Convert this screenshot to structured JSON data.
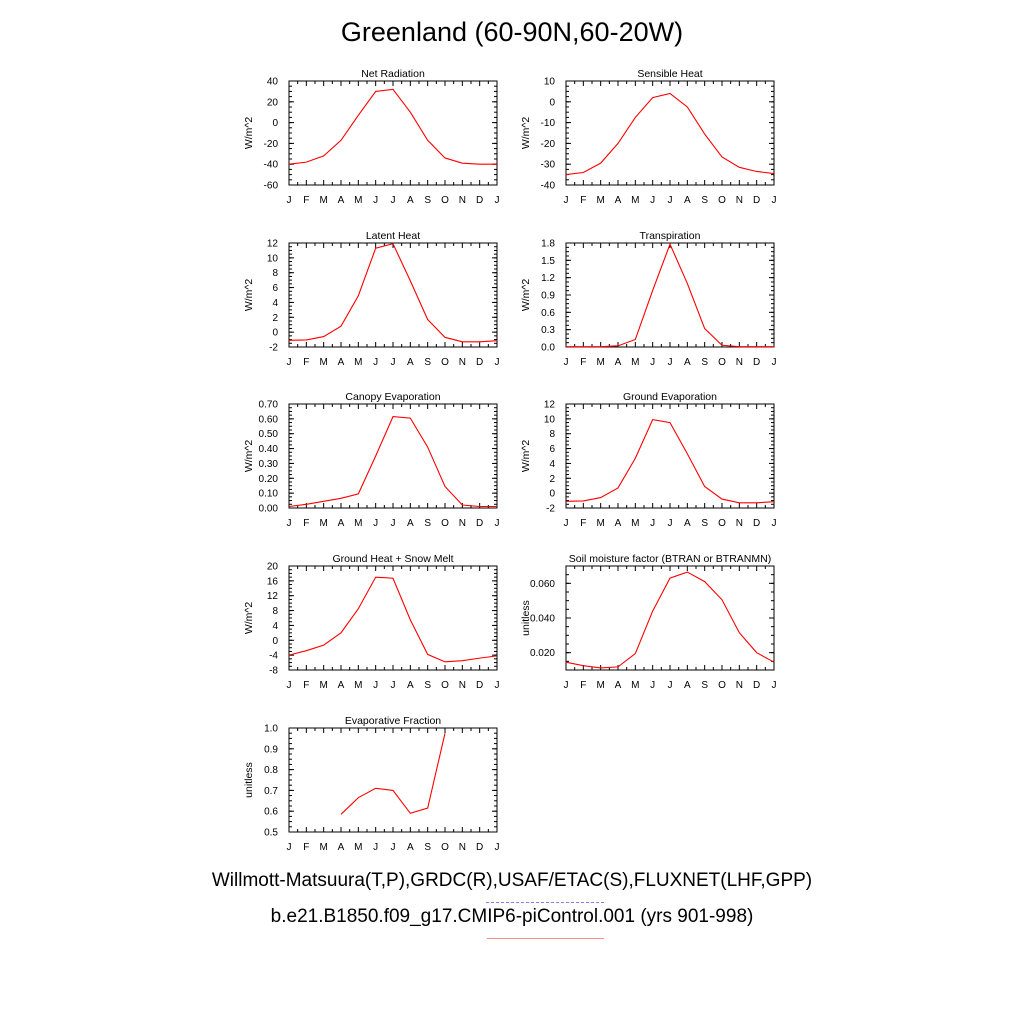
{
  "title": "Greenland (60-90N,60-20W)",
  "legend": {
    "obs": "Willmott-Matsuura(T,P),GRDC(R),USAF/ETAC(S),FLUXNET(LHF,GPP)",
    "obs_color": "#8080e6",
    "model": "b.e21.B1850.f09_g17.CMIP6-piControl.001 (yrs 901-998)",
    "model_color": "#ff0000"
  },
  "chart_data": [
    {
      "type": "line",
      "title": "Net Radiation",
      "ylabel": "W/m^2",
      "categories": [
        "J",
        "F",
        "M",
        "A",
        "M",
        "J",
        "J",
        "A",
        "S",
        "O",
        "N",
        "D",
        "J"
      ],
      "ylim": [
        -60,
        40
      ],
      "yticks": [
        -60,
        -40,
        -20,
        0,
        20,
        40
      ],
      "ytick_labels": [
        "-60",
        "-40",
        "-20",
        "0",
        "20",
        "40"
      ],
      "series": [
        {
          "values": [
            -40,
            -38,
            -32,
            -17,
            7,
            30,
            32,
            10,
            -17,
            -34,
            -39,
            -40,
            -40
          ],
          "color": "#ff0000"
        }
      ]
    },
    {
      "type": "line",
      "title": "Sensible Heat",
      "ylabel": "W/m^2",
      "categories": [
        "J",
        "F",
        "M",
        "A",
        "M",
        "J",
        "J",
        "A",
        "S",
        "O",
        "N",
        "D",
        "J"
      ],
      "ylim": [
        -40,
        10
      ],
      "yticks": [
        -40,
        -30,
        -20,
        -10,
        0,
        10
      ],
      "ytick_labels": [
        "-40",
        "-30",
        "-20",
        "-10",
        "0",
        "10"
      ],
      "series": [
        {
          "values": [
            -35,
            -34,
            -29.5,
            -20,
            -7.5,
            2,
            4,
            -2.5,
            -15.5,
            -26.5,
            -31.5,
            -33.5,
            -34.5
          ],
          "color": "#ff0000"
        }
      ]
    },
    {
      "type": "line",
      "title": "Latent Heat",
      "ylabel": "W/m^2",
      "categories": [
        "J",
        "F",
        "M",
        "A",
        "M",
        "J",
        "J",
        "A",
        "S",
        "O",
        "N",
        "D",
        "J"
      ],
      "ylim": [
        -2,
        12
      ],
      "yticks": [
        -2,
        0,
        2,
        4,
        6,
        8,
        10,
        12
      ],
      "ytick_labels": [
        "-2",
        "0",
        "2",
        "4",
        "6",
        "8",
        "10",
        "12"
      ],
      "series": [
        {
          "values": [
            -1.1,
            -1.05,
            -0.6,
            0.8,
            4.9,
            11.3,
            11.9,
            6.9,
            1.7,
            -0.7,
            -1.3,
            -1.3,
            -1.15
          ],
          "color": "#ff0000"
        }
      ]
    },
    {
      "type": "line",
      "title": "Transpiration",
      "ylabel": "W/m^2",
      "categories": [
        "J",
        "F",
        "M",
        "A",
        "M",
        "J",
        "J",
        "A",
        "S",
        "O",
        "N",
        "D",
        "J"
      ],
      "ylim": [
        0,
        1.8
      ],
      "yticks": [
        0,
        0.3,
        0.6,
        0.9,
        1.2,
        1.5,
        1.8
      ],
      "ytick_labels": [
        "0.0",
        "0.3",
        "0.6",
        "0.9",
        "1.2",
        "1.5",
        "1.8"
      ],
      "series": [
        {
          "values": [
            0.005,
            0.005,
            0.005,
            0.02,
            0.13,
            0.98,
            1.78,
            1.1,
            0.32,
            0.03,
            0.005,
            0.005,
            0.005
          ],
          "color": "#ff0000"
        }
      ]
    },
    {
      "type": "line",
      "title": "Canopy Evaporation",
      "ylabel": "W/m^2",
      "categories": [
        "J",
        "F",
        "M",
        "A",
        "M",
        "J",
        "J",
        "A",
        "S",
        "O",
        "N",
        "D",
        "J"
      ],
      "ylim": [
        0,
        0.7
      ],
      "yticks": [
        0,
        0.1,
        0.2,
        0.3,
        0.4,
        0.5,
        0.6,
        0.7
      ],
      "ytick_labels": [
        "0.00",
        "0.10",
        "0.20",
        "0.30",
        "0.40",
        "0.50",
        "0.60",
        "0.70"
      ],
      "series": [
        {
          "values": [
            0.01,
            0.025,
            0.045,
            0.065,
            0.095,
            0.35,
            0.615,
            0.605,
            0.41,
            0.145,
            0.02,
            0.01,
            0.01
          ],
          "color": "#ff0000"
        }
      ]
    },
    {
      "type": "line",
      "title": "Ground Evaporation",
      "ylabel": "W/m^2",
      "categories": [
        "J",
        "F",
        "M",
        "A",
        "M",
        "J",
        "J",
        "A",
        "S",
        "O",
        "N",
        "D",
        "J"
      ],
      "ylim": [
        -2,
        12
      ],
      "yticks": [
        -2,
        0,
        2,
        4,
        6,
        8,
        10,
        12
      ],
      "ytick_labels": [
        "-2",
        "0",
        "2",
        "4",
        "6",
        "8",
        "10",
        "12"
      ],
      "series": [
        {
          "values": [
            -1.1,
            -1.05,
            -0.6,
            0.7,
            4.7,
            9.9,
            9.5,
            5.3,
            0.9,
            -0.8,
            -1.3,
            -1.3,
            -1.15
          ],
          "color": "#ff0000"
        }
      ]
    },
    {
      "type": "line",
      "title": "Ground Heat + Snow Melt",
      "ylabel": "W/m^2",
      "categories": [
        "J",
        "F",
        "M",
        "A",
        "M",
        "J",
        "J",
        "A",
        "S",
        "O",
        "N",
        "D",
        "J"
      ],
      "ylim": [
        -8,
        20
      ],
      "yticks": [
        -8,
        -4,
        0,
        4,
        8,
        12,
        16,
        20
      ],
      "ytick_labels": [
        "-8",
        "-4",
        "0",
        "4",
        "8",
        "12",
        "16",
        "20"
      ],
      "series": [
        {
          "values": [
            -4,
            -2.8,
            -1.3,
            2,
            8.5,
            17,
            16.7,
            5.5,
            -3.8,
            -5.8,
            -5.5,
            -4.8,
            -4.2
          ],
          "color": "#ff0000"
        }
      ]
    },
    {
      "type": "line",
      "title": "Soil moisture factor (BTRAN or BTRANMN)",
      "ylabel": "unitless",
      "categories": [
        "J",
        "F",
        "M",
        "A",
        "M",
        "J",
        "J",
        "A",
        "S",
        "O",
        "N",
        "D",
        "J"
      ],
      "ylim": [
        0.01,
        0.07
      ],
      "yticks": [
        0.02,
        0.04,
        0.06
      ],
      "ytick_labels": [
        "0.020",
        "0.040",
        "0.060"
      ],
      "series": [
        {
          "values": [
            0.0145,
            0.0125,
            0.0112,
            0.0118,
            0.0195,
            0.044,
            0.063,
            0.0665,
            0.061,
            0.0505,
            0.0315,
            0.02,
            0.0145
          ],
          "color": "#ff0000"
        }
      ]
    },
    {
      "type": "line",
      "title": "Evaporative Fraction",
      "ylabel": "unitless",
      "categories": [
        "J",
        "F",
        "M",
        "A",
        "M",
        "J",
        "J",
        "A",
        "S",
        "O",
        "N",
        "D",
        "J"
      ],
      "ylim": [
        0.5,
        1.0
      ],
      "yticks": [
        0.5,
        0.6,
        0.7,
        0.8,
        0.9,
        1.0
      ],
      "ytick_labels": [
        "0.5",
        "0.6",
        "0.7",
        "0.8",
        "0.9",
        "1.0"
      ],
      "series": [
        {
          "values": [
            null,
            null,
            null,
            0.585,
            0.665,
            0.71,
            0.7,
            0.59,
            0.615,
            0.975,
            null,
            null,
            null
          ],
          "color": "#ff0000"
        }
      ]
    }
  ]
}
